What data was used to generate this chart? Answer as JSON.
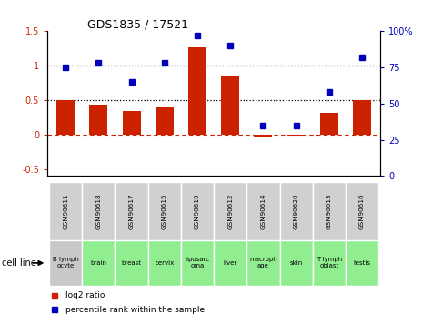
{
  "title": "GDS1835 / 17521",
  "gsm_labels": [
    "GSM90611",
    "GSM90618",
    "GSM90617",
    "GSM90615",
    "GSM90619",
    "GSM90612",
    "GSM90614",
    "GSM90620",
    "GSM90613",
    "GSM90616"
  ],
  "cell_labels": [
    "B lymph\nocyte",
    "brain",
    "breast",
    "cervix",
    "liposarc\noma",
    "liver",
    "macroph\nage",
    "skin",
    "T lymph\noblast",
    "testis"
  ],
  "cell_bg_colors": [
    "#c8c8c8",
    "#90EE90",
    "#90EE90",
    "#90EE90",
    "#90EE90",
    "#90EE90",
    "#90EE90",
    "#90EE90",
    "#90EE90",
    "#90EE90"
  ],
  "log2_ratio": [
    0.5,
    0.44,
    0.34,
    0.4,
    1.27,
    0.85,
    -0.03,
    -0.02,
    0.32,
    0.5
  ],
  "pct_rank": [
    75,
    78,
    65,
    78,
    97,
    90,
    35,
    35,
    58,
    82
  ],
  "bar_color": "#cc2200",
  "dot_color": "#0000bb",
  "ylim_left": [
    -0.6,
    1.5
  ],
  "ylim_right": [
    0,
    100
  ],
  "left_ticks": [
    -0.5,
    0.0,
    0.5,
    1.0,
    1.5
  ],
  "left_tick_labels": [
    "-0.5",
    "0",
    "0.5",
    "1",
    "1.5"
  ],
  "right_tick_values": [
    0,
    25,
    50,
    75,
    100
  ],
  "right_tick_labels": [
    "0",
    "25",
    "50",
    "75",
    "100%"
  ],
  "legend_red": "log2 ratio",
  "legend_blue": "percentile rank within the sample",
  "cell_line_label": "cell line"
}
